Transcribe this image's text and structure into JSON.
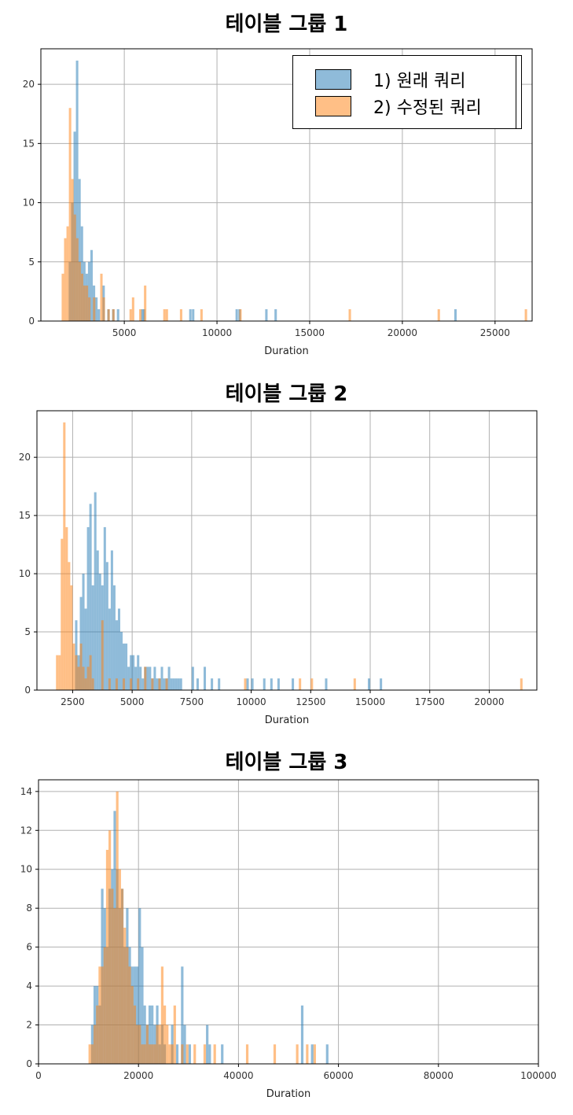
{
  "legend": {
    "items": [
      {
        "label": "1) 원래 쿼리",
        "color": "#1f77b4"
      },
      {
        "label": "2) 수정된 쿼리",
        "color": "#ff7f0e"
      }
    ]
  },
  "chart_data": [
    {
      "type": "histogram",
      "title": "테이블 그룹 1",
      "xlabel": "Duration",
      "ylabel": "",
      "xlim": [
        500,
        27000
      ],
      "ylim": [
        0,
        23
      ],
      "xticks": [
        5000,
        10000,
        15000,
        20000,
        25000
      ],
      "yticks": [
        0,
        5,
        10,
        15,
        20
      ],
      "grid": true,
      "legend_position": "top-right",
      "bin_width": 130,
      "series": [
        {
          "name": "1) 원래 쿼리",
          "color": "#1f77b4",
          "x": [
            2000,
            2130,
            2260,
            2390,
            2520,
            2650,
            2780,
            2910,
            3040,
            3170,
            3300,
            3430,
            3560,
            3820,
            4080,
            4340,
            4600,
            5900,
            6000,
            8500,
            8650,
            11000,
            11150,
            12600,
            13100,
            22800
          ],
          "counts": [
            5,
            10,
            16,
            22,
            12,
            8,
            5,
            4,
            5,
            6,
            3,
            2,
            1,
            3,
            1,
            1,
            1,
            1,
            1,
            1,
            1,
            1,
            1,
            1,
            1,
            1
          ]
        },
        {
          "name": "2) 수정된 쿼리",
          "color": "#ff7f0e",
          "x": [
            1620,
            1750,
            1880,
            2010,
            2140,
            2270,
            2400,
            2530,
            2660,
            2790,
            2920,
            3050,
            3310,
            3700,
            3830,
            4090,
            4350,
            5280,
            5410,
            5800,
            6060,
            7100,
            7230,
            8000,
            9100,
            11200,
            17100,
            21900,
            26600
          ],
          "counts": [
            4,
            7,
            8,
            18,
            12,
            9,
            7,
            5,
            4,
            3,
            3,
            2,
            2,
            4,
            2,
            1,
            1,
            1,
            2,
            1,
            3,
            1,
            1,
            1,
            1,
            1,
            1,
            1,
            1
          ]
        }
      ]
    },
    {
      "type": "histogram",
      "title": "테이블 그룹 2",
      "xlabel": "Duration",
      "ylabel": "",
      "xlim": [
        1000,
        22000
      ],
      "ylim": [
        0,
        24
      ],
      "xticks": [
        2500,
        5000,
        7500,
        10000,
        12500,
        15000,
        17500,
        20000
      ],
      "yticks": [
        0,
        5,
        10,
        15,
        20
      ],
      "grid": true,
      "bin_width": 100,
      "series": [
        {
          "name": "1) 원래 쿼리",
          "color": "#1f77b4",
          "x": [
            2600,
            2700,
            2800,
            2900,
            3000,
            3100,
            3200,
            3300,
            3400,
            3500,
            3600,
            3700,
            3800,
            3900,
            4000,
            4100,
            4200,
            4300,
            4400,
            4500,
            4600,
            4700,
            4800,
            4900,
            5000,
            5100,
            5200,
            5300,
            5400,
            5500,
            5600,
            5700,
            5800,
            5900,
            6000,
            6100,
            6200,
            6300,
            6400,
            6500,
            6600,
            6700,
            6800,
            6900,
            7000,
            7500,
            7700,
            8000,
            8300,
            8600,
            9800,
            10000,
            10500,
            10800,
            11100,
            11700,
            13100,
            14900,
            15400
          ],
          "counts": [
            6,
            3,
            8,
            10,
            7,
            14,
            16,
            9,
            17,
            12,
            10,
            9,
            14,
            11,
            7,
            12,
            9,
            6,
            7,
            5,
            4,
            4,
            2,
            3,
            3,
            2,
            3,
            2,
            1,
            2,
            2,
            2,
            1,
            2,
            1,
            1,
            2,
            1,
            1,
            2,
            1,
            1,
            1,
            1,
            1,
            2,
            1,
            2,
            1,
            1,
            1,
            1,
            1,
            1,
            1,
            1,
            1,
            1,
            1
          ]
        },
        {
          "name": "2) 수정된 쿼리",
          "color": "#ff7f0e",
          "x": [
            1800,
            1900,
            2000,
            2100,
            2200,
            2300,
            2400,
            2500,
            2600,
            2700,
            2800,
            2900,
            3000,
            3100,
            3200,
            3300,
            3700,
            4000,
            4300,
            4600,
            4900,
            5200,
            5500,
            5800,
            6100,
            6400,
            9700,
            12000,
            12500,
            14300,
            21300
          ],
          "counts": [
            3,
            3,
            13,
            23,
            14,
            11,
            9,
            4,
            3,
            2,
            4,
            2,
            1,
            2,
            3,
            1,
            6,
            1,
            1,
            1,
            1,
            1,
            2,
            1,
            1,
            1,
            1,
            1,
            1,
            1,
            1
          ]
        }
      ]
    },
    {
      "type": "histogram",
      "title": "테이블 그룹 3",
      "xlabel": "Duration",
      "ylabel": "",
      "xlim": [
        0,
        100000
      ],
      "ylim": [
        0,
        14.6
      ],
      "xticks": [
        0,
        20000,
        40000,
        60000,
        80000,
        100000
      ],
      "yticks": [
        0,
        2,
        4,
        6,
        8,
        10,
        12,
        14
      ],
      "grid": true,
      "bin_width": 500,
      "series": [
        {
          "name": "1) 원래 쿼리",
          "color": "#1f77b4",
          "x": [
            10500,
            11000,
            11500,
            12000,
            12500,
            13000,
            13500,
            14000,
            14500,
            15000,
            15500,
            16000,
            16500,
            17000,
            17500,
            18000,
            18500,
            19000,
            19500,
            20000,
            20500,
            21000,
            21500,
            22000,
            22500,
            23000,
            23500,
            24000,
            24500,
            25000,
            26500,
            27500,
            28500,
            29000,
            30000,
            33500,
            34000,
            36500,
            52500,
            54500,
            57500
          ],
          "counts": [
            2,
            4,
            4,
            3,
            9,
            8,
            6,
            9,
            10,
            13,
            10,
            8,
            9,
            6,
            8,
            6,
            5,
            5,
            5,
            8,
            6,
            3,
            2,
            3,
            3,
            2,
            3,
            1,
            2,
            1,
            2,
            1,
            5,
            2,
            1,
            2,
            1,
            1,
            3,
            1,
            1
          ]
        },
        {
          "name": "2) 수정된 쿼리",
          "color": "#ff7f0e",
          "x": [
            10000,
            10500,
            11000,
            11500,
            12000,
            12500,
            13000,
            13500,
            14000,
            14500,
            15000,
            15500,
            16000,
            16500,
            17000,
            17500,
            18000,
            18500,
            19000,
            19500,
            20000,
            20500,
            21000,
            21500,
            22000,
            22500,
            23000,
            23500,
            24000,
            24500,
            25000,
            25500,
            26000,
            26500,
            27000,
            28500,
            29500,
            31000,
            33000,
            35000,
            41500,
            47000,
            51500,
            53500,
            55000
          ],
          "counts": [
            1,
            1,
            2,
            3,
            5,
            5,
            6,
            11,
            12,
            9,
            8,
            14,
            10,
            9,
            7,
            6,
            5,
            4,
            3,
            2,
            2,
            1,
            1,
            2,
            1,
            1,
            1,
            2,
            2,
            5,
            3,
            2,
            1,
            1,
            3,
            1,
            1,
            1,
            1,
            1,
            1,
            1,
            1,
            1,
            1
          ]
        }
      ]
    }
  ]
}
